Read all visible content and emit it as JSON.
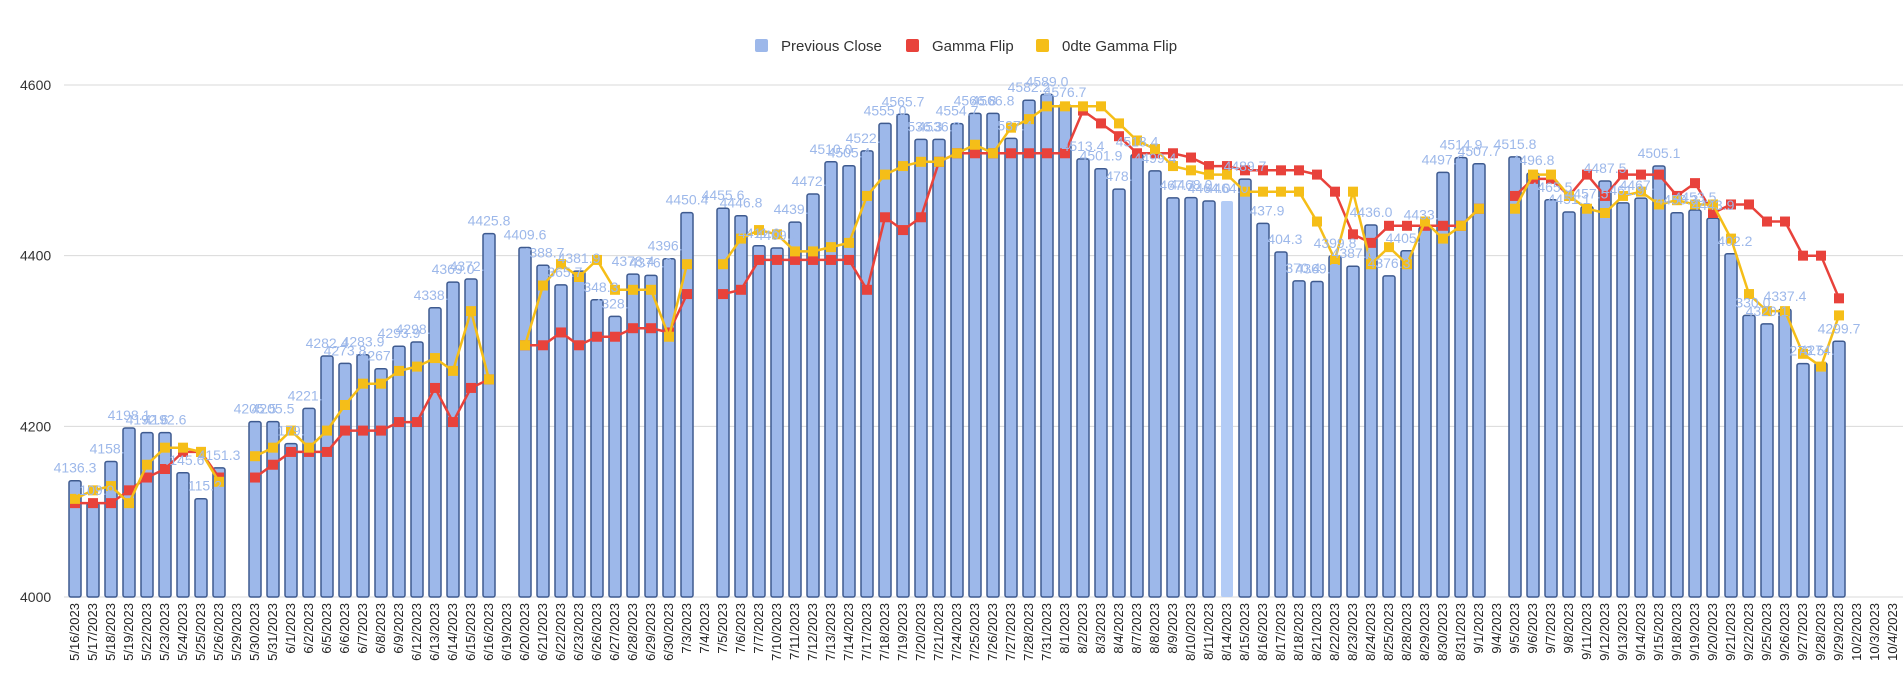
{
  "chart_data": {
    "type": "bar",
    "title": "",
    "xlabel": "",
    "ylabel": "",
    "ylim": [
      4000,
      4600
    ],
    "yticks": [
      4000,
      4200,
      4400,
      4600
    ],
    "grid": true,
    "legend_position": "top-center",
    "colors": {
      "bar_fill": "#9db8ea",
      "bar_stroke": "#3e5a8f",
      "bar_highlight": "#b3ccf6",
      "gamma": "#e8423b",
      "zero_dte": "#f5be18",
      "grid": "#d9d9d9",
      "label": "#9db8ea"
    },
    "legend": [
      {
        "name": "Previous Close",
        "color": "#9db8ea"
      },
      {
        "name": "Gamma Flip",
        "color": "#e8423b"
      },
      {
        "name": "0dte Gamma Flip",
        "color": "#f5be18"
      }
    ],
    "categories": [
      "5/16/2023",
      "5/17/2023",
      "5/18/2023",
      "5/19/2023",
      "5/22/2023",
      "5/23/2023",
      "5/24/2023",
      "5/25/2023",
      "5/26/2023",
      "5/29/2023",
      "5/30/2023",
      "5/31/2023",
      "6/1/2023",
      "6/2/2023",
      "6/5/2023",
      "6/6/2023",
      "6/7/2023",
      "6/8/2023",
      "6/9/2023",
      "6/12/2023",
      "6/13/2023",
      "6/14/2023",
      "6/15/2023",
      "6/16/2023",
      "6/19/2023",
      "6/20/2023",
      "6/21/2023",
      "6/22/2023",
      "6/23/2023",
      "6/26/2023",
      "6/27/2023",
      "6/28/2023",
      "6/29/2023",
      "6/30/2023",
      "7/3/2023",
      "7/4/2023",
      "7/5/2023",
      "7/6/2023",
      "7/7/2023",
      "7/10/2023",
      "7/11/2023",
      "7/12/2023",
      "7/13/2023",
      "7/14/2023",
      "7/17/2023",
      "7/18/2023",
      "7/19/2023",
      "7/20/2023",
      "7/21/2023",
      "7/24/2023",
      "7/25/2023",
      "7/26/2023",
      "7/27/2023",
      "7/28/2023",
      "7/31/2023",
      "8/1/2023",
      "8/2/2023",
      "8/3/2023",
      "8/4/2023",
      "8/7/2023",
      "8/8/2023",
      "8/9/2023",
      "8/10/2023",
      "8/11/2023",
      "8/14/2023",
      "8/15/2023",
      "8/16/2023",
      "8/17/2023",
      "8/18/2023",
      "8/21/2023",
      "8/22/2023",
      "8/23/2023",
      "8/24/2023",
      "8/25/2023",
      "8/28/2023",
      "8/29/2023",
      "8/30/2023",
      "8/31/2023",
      "9/1/2023",
      "9/4/2023",
      "9/5/2023",
      "9/6/2023",
      "9/7/2023",
      "9/8/2023",
      "9/11/2023",
      "9/12/2023",
      "9/13/2023",
      "9/14/2023",
      "9/15/2023",
      "9/18/2023",
      "9/19/2023",
      "9/20/2023",
      "9/21/2023",
      "9/22/2023",
      "9/25/2023",
      "9/26/2023",
      "9/27/2023",
      "9/28/2023",
      "9/29/2023",
      "10/2/2023",
      "10/3/2023",
      "10/4/2023",
      "10/5/2023"
    ],
    "series": [
      {
        "name": "Previous Close",
        "type": "bar",
        "highlight_index": 64,
        "values": [
          4136.3,
          4109.9,
          4158.8,
          4198.1,
          4192.6,
          4192.6,
          4145.6,
          4115.2,
          4151.3,
          null,
          4205.5,
          4205.5,
          4179.8,
          4221.0,
          4282.4,
          4273.8,
          4283.9,
          4267.5,
          4293.9,
          4298.9,
          4338.9,
          4369.0,
          4372.6,
          4425.8,
          null,
          4409.6,
          4388.7,
          4365.7,
          4381.9,
          4348.3,
          4328.8,
          4378.4,
          4376.9,
          4396.4,
          4450.4,
          null,
          4455.6,
          4446.8,
          4411.6,
          4409.0,
          4439.3,
          4472.2,
          4510.0,
          4505.4,
          4522.8,
          4555.0,
          4565.7,
          4536.3,
          4536.3,
          4554.7,
          4566.8,
          4566.8,
          4537.4,
          4582.2,
          4589.0,
          4576.7,
          4513.4,
          4501.9,
          4478.0,
          4518.4,
          4499.4,
          4467.7,
          4468.0,
          4464.0,
          4464.0,
          4489.7,
          4437.9,
          4404.3,
          4370.4,
          4369.7,
          4399.8,
          4387.6,
          4436.0,
          4376.3,
          4405.7,
          4433.3,
          4497.6,
          4514.9,
          4507.7,
          null,
          4515.8,
          4496.8,
          4465.5,
          4451.1,
          4457.5,
          4487.5,
          4461.9,
          4467.4,
          4505.1,
          4450.3,
          4453.5,
          4443.9,
          4402.2,
          4330.0,
          4320.1,
          4337.4,
          4273.5,
          4274.5,
          4299.7,
          null,
          null,
          null,
          null
        ]
      },
      {
        "name": "Gamma Flip",
        "type": "line",
        "values": [
          4110,
          4110,
          4110,
          4125,
          4140,
          4150,
          4170,
          4170,
          4140,
          null,
          4140,
          4155,
          4170,
          4170,
          4170,
          4195,
          4195,
          4195,
          4205,
          4205,
          4245,
          4205,
          4245,
          4255,
          null,
          4295,
          4295,
          4310,
          4295,
          4305,
          4305,
          4315,
          4315,
          4310,
          4355,
          null,
          4355,
          4360,
          4395,
          4395,
          4395,
          4395,
          4395,
          4395,
          4360,
          4445,
          4430,
          4445,
          4510,
          4520,
          4520,
          4520,
          4520,
          4520,
          4520,
          4520,
          4570,
          4555,
          4540,
          4520,
          4520,
          4520,
          4515,
          4505,
          4505,
          4500,
          4500,
          4500,
          4500,
          4495,
          4475,
          4425,
          4415,
          4435,
          4435,
          4435,
          4435,
          4435,
          4455,
          null,
          4470,
          4490,
          4490,
          4470,
          4495,
          4470,
          4495,
          4495,
          4495,
          4470,
          4485,
          4450,
          4460,
          4460,
          4440,
          4440,
          4400,
          4400,
          4350,
          null,
          null,
          null,
          null
        ]
      },
      {
        "name": "0dte Gamma Flip",
        "type": "line",
        "values": [
          4115,
          4125,
          4130,
          4110,
          4155,
          4175,
          4175,
          4170,
          4135,
          null,
          4165,
          4175,
          4195,
          4175,
          4195,
          4225,
          4250,
          4250,
          4265,
          4270,
          4280,
          4265,
          4335,
          4255,
          null,
          4295,
          4365,
          4390,
          4375,
          4395,
          4360,
          4360,
          4360,
          4305,
          4390,
          null,
          4390,
          4420,
          4430,
          4425,
          4405,
          4405,
          4410,
          4415,
          4470,
          4495,
          4505,
          4510,
          4510,
          4520,
          4530,
          4520,
          4550,
          4560,
          4575,
          4575,
          4575,
          4575,
          4555,
          4535,
          4525,
          4505,
          4500,
          4495,
          4495,
          4475,
          4475,
          4475,
          4475,
          4440,
          4395,
          4475,
          4390,
          4410,
          4390,
          4440,
          4420,
          4435,
          4455,
          null,
          4455,
          4495,
          4495,
          4470,
          4455,
          4450,
          4470,
          4475,
          4460,
          4465,
          4460,
          4460,
          4420,
          4355,
          4335,
          4335,
          4285,
          4270,
          4330,
          null,
          null,
          null,
          null
        ]
      }
    ]
  }
}
